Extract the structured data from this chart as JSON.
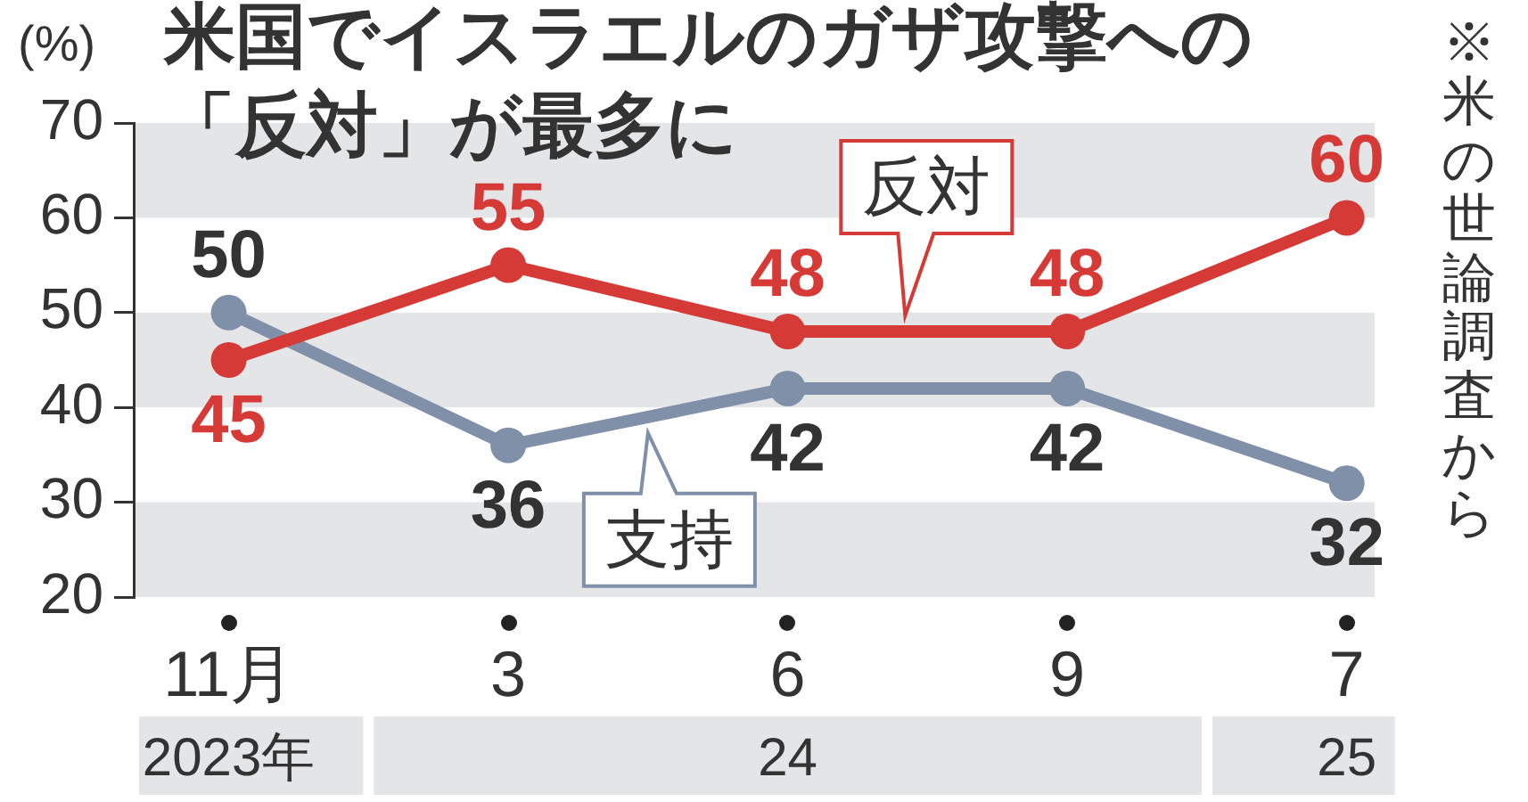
{
  "chart_data": {
    "type": "line",
    "title": "米国でイスラエルのガザ攻撃への「反対」が最多に",
    "ylabel": "(%)",
    "categories": [
      "11月",
      "3",
      "6",
      "9",
      "7"
    ],
    "series": [
      {
        "name": "反対",
        "color": "#d63a37",
        "values": [
          45,
          55,
          48,
          48,
          60
        ]
      },
      {
        "name": "支持",
        "color": "#8090a9",
        "values": [
          50,
          36,
          42,
          42,
          32
        ]
      }
    ],
    "ylim": [
      20,
      70
    ],
    "yticks": [
      20,
      30,
      40,
      50,
      60,
      70
    ],
    "marker": "circle",
    "line_style": "solid",
    "data_labels": true,
    "bands": [
      {
        "axis": "y",
        "from": 20,
        "to": 30,
        "color": "#e4e5e7"
      },
      {
        "axis": "y",
        "from": 40,
        "to": 50,
        "color": "#e4e5e7"
      },
      {
        "axis": "y",
        "from": 60,
        "to": 70,
        "color": "#e4e5e7"
      }
    ],
    "annotations": [
      "2023年",
      "24",
      "25",
      "※米の世論調査から"
    ]
  }
}
